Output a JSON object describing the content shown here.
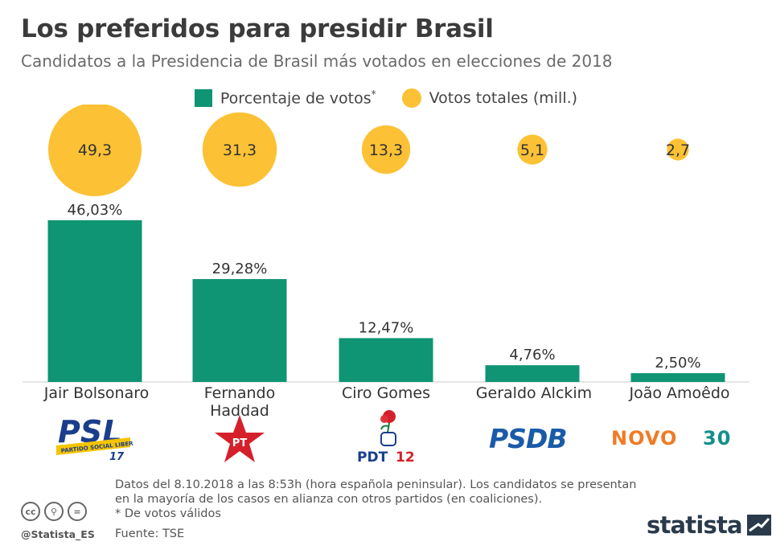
{
  "title": "Los preferidos para presidir Brasil",
  "subtitle": "Candidatos a la Presidencia de Brasil más votados en elecciones de 2018",
  "legend": {
    "bar_label": "Porcentaje de votos",
    "bar_marker": "*",
    "dot_label": "Votos totales (mill.)"
  },
  "colors": {
    "bar": "#0f9474",
    "bubble": "#fdc135"
  },
  "chart_data": {
    "type": "bar",
    "title": "Los preferidos para presidir Brasil",
    "categories": [
      "Jair Bolsonaro",
      "Fernando Haddad",
      "Ciro Gomes",
      "Geraldo Alckim",
      "João Amoêdo"
    ],
    "series": [
      {
        "name": "Porcentaje de votos*",
        "values": [
          46.03,
          29.28,
          12.47,
          4.76,
          2.5
        ],
        "labels": [
          "46,03%",
          "29,28%",
          "12,47%",
          "4,76%",
          "2,50%"
        ]
      },
      {
        "name": "Votos totales (mill.)",
        "values": [
          49.3,
          31.3,
          13.3,
          5.1,
          2.7
        ],
        "labels": [
          "49,3",
          "31,3",
          "13,3",
          "5,1",
          "2,7"
        ]
      }
    ],
    "ylim": [
      0,
      50
    ]
  },
  "candidates": [
    {
      "line1": "Jair Bolsonaro",
      "line2": ""
    },
    {
      "line1": "Fernando",
      "line2": "Haddad"
    },
    {
      "line1": "Ciro Gomes",
      "line2": ""
    },
    {
      "line1": "Geraldo Alckim",
      "line2": ""
    },
    {
      "line1": "João Amoêdo",
      "line2": ""
    }
  ],
  "logos": {
    "psl": {
      "name": "PSL",
      "band": "PARTIDO SOCIAL LIBERAL",
      "number": "17"
    },
    "pt": {
      "name": "PT"
    },
    "pdt": {
      "name": "PDT",
      "number": "12"
    },
    "psdb": {
      "name": "PSDB"
    },
    "novo": {
      "name": "NOVO",
      "number": "30"
    }
  },
  "notes": {
    "line1": "Datos del 8.10.2018 a las 8:53h (hora española peninsular). Los candidatos se presentan",
    "line2": "en la mayoría de los casos en alianza con otros partidos (en coaliciones).",
    "line3": "* De votos válidos"
  },
  "source": "Fuente: TSE",
  "handle": "@Statista_ES",
  "brand": "statista"
}
